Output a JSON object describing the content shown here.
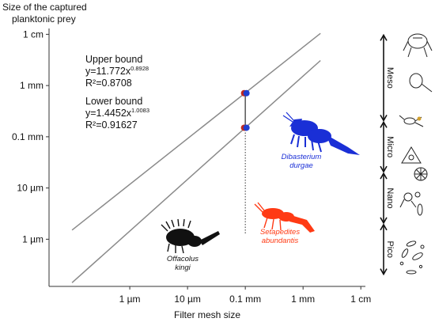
{
  "chart_data": {
    "type": "line",
    "title": "",
    "ylabel": "Size of the captured planktonic prey",
    "ylabel_lines": [
      "Size of the captured",
      "planktonic prey"
    ],
    "xlabel": "Filter mesh size",
    "x_ticks": [
      {
        "label": "1 µm",
        "value_um": 1
      },
      {
        "label": "10 µm",
        "value_um": 10
      },
      {
        "label": "0.1 mm",
        "value_um": 100
      },
      {
        "label": "1 mm",
        "value_um": 1000
      },
      {
        "label": "1 cm",
        "value_um": 10000
      }
    ],
    "y_ticks": [
      {
        "label": "1 cm",
        "value_um": 10000
      },
      {
        "label": "1 mm",
        "value_um": 1000
      },
      {
        "label": "0.1 mm",
        "value_um": 100
      },
      {
        "label": "10 µm",
        "value_um": 10
      },
      {
        "label": "1 µm",
        "value_um": 1
      }
    ],
    "xlim_um": [
      0.04,
      12000
    ],
    "ylim_um": [
      0.12,
      13000
    ],
    "log_scale": true,
    "grid": false,
    "series": [
      {
        "name": "Upper bound",
        "equation": "y=11.772x",
        "exponent": "0.8928",
        "r2": "R²=0.8708",
        "coef": 11.772,
        "exp": 0.8928,
        "x_range_um": [
          0.1,
          2000
        ],
        "color": "#8a8a8a"
      },
      {
        "name": "Lower bound",
        "equation": "y=1.4452x",
        "exponent": "1.0083",
        "r2": "R²=0.91627",
        "coef": 1.4452,
        "exp": 1.0083,
        "x_range_um": [
          0.1,
          2000
        ],
        "color": "#8a8a8a"
      }
    ],
    "points": [
      {
        "x_um": 100,
        "y_um": 710,
        "color": "#1f3fd0",
        "accent": "#c0281e"
      },
      {
        "x_um": 100,
        "y_um": 150,
        "color": "#1f3fd0",
        "accent": "#c0281e"
      }
    ],
    "markers": {
      "range_line": {
        "x_um": 100,
        "y_um": [
          150,
          710
        ],
        "color": "#555555"
      },
      "dotted_line": {
        "x_um": 100,
        "y_um": [
          1.3,
          150
        ],
        "color": "#333333"
      }
    },
    "species": [
      {
        "name": "Dibasterium",
        "name2": "durgae",
        "color": "#1a2fd6"
      },
      {
        "name": "Setapedites",
        "name2": "abundantis",
        "color": "#ff3a14"
      },
      {
        "name": "Offacolus",
        "name2": "kingi",
        "color": "#111111"
      }
    ],
    "size_classes": [
      {
        "label": "Meso",
        "y_top_um": 10000,
        "y_bottom_um": 200
      },
      {
        "label": "Micro",
        "y_top_um": 200,
        "y_bottom_um": 20
      },
      {
        "label": "Nano",
        "y_top_um": 20,
        "y_bottom_um": 2
      },
      {
        "label": "Pico",
        "y_top_um": 2,
        "y_bottom_um": 0.2
      }
    ]
  }
}
